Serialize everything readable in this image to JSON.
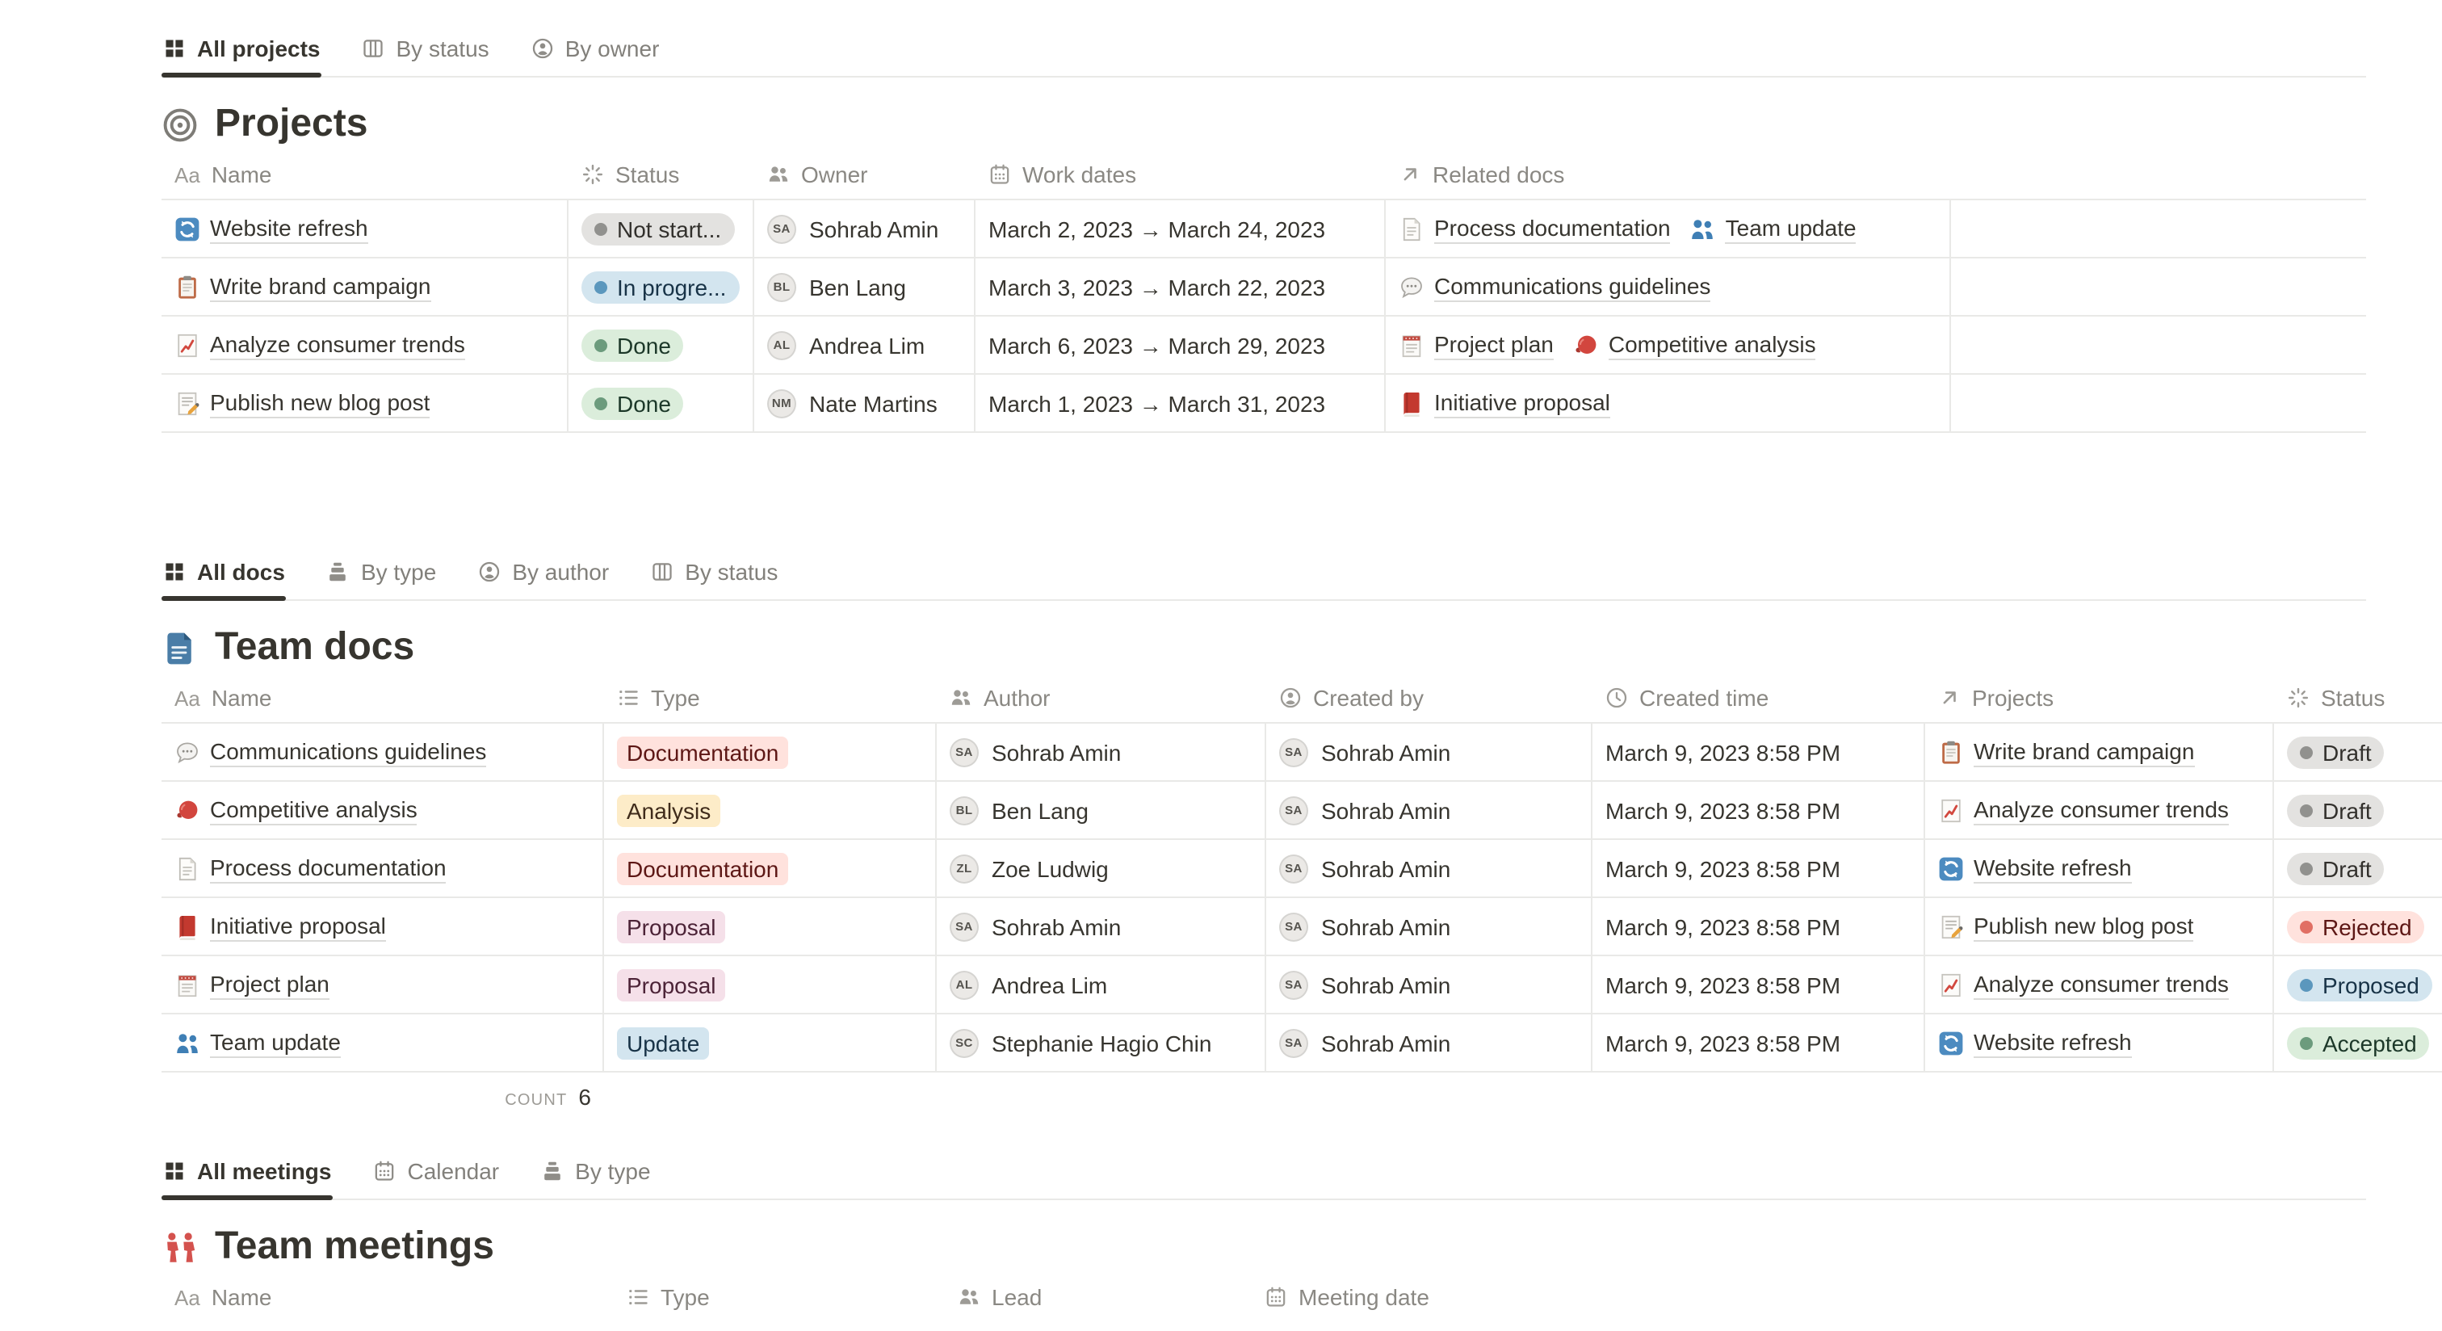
{
  "palette": {
    "status": {
      "gray": {
        "bg": "#E3E2E0",
        "dot": "#91918E",
        "text": "#32302C"
      },
      "blue": {
        "bg": "#D3E5EF",
        "dot": "#5B97BD",
        "text": "#183347"
      },
      "green": {
        "bg": "#DBEDDB",
        "dot": "#6C9B7D",
        "text": "#1C3829"
      },
      "red": {
        "bg": "#FFE2DD",
        "dot": "#E16F64",
        "text": "#5D1715"
      }
    },
    "tag": {
      "red": {
        "bg": "#FFE2DD",
        "text": "#5D1715"
      },
      "yellow": {
        "bg": "#FDECC8",
        "text": "#402C1B"
      },
      "pink": {
        "bg": "#F5E0E9",
        "text": "#4C2337"
      },
      "blue": {
        "bg": "#D3E5EF",
        "text": "#183347"
      }
    }
  },
  "sections": [
    {
      "title": "Projects",
      "title_icon": "target",
      "tabs": [
        {
          "label": "All projects",
          "icon": "grid",
          "active": true
        },
        {
          "label": "By status",
          "icon": "board",
          "active": false
        },
        {
          "label": "By owner",
          "icon": "person",
          "active": false
        }
      ],
      "columns": [
        {
          "label": "Name",
          "icon": "text"
        },
        {
          "label": "Status",
          "icon": "status"
        },
        {
          "label": "Owner",
          "icon": "people"
        },
        {
          "label": "Work dates",
          "icon": "calendar"
        },
        {
          "label": "Related docs",
          "icon": "relation"
        }
      ],
      "rows": [
        {
          "icon": "refresh",
          "name": "Website refresh",
          "status": {
            "label": "Not start...",
            "color": "gray"
          },
          "owner": {
            "name": "Sohrab Amin",
            "initials": "SA"
          },
          "work_dates": "March 2, 2023 → March 24, 2023",
          "related": [
            {
              "icon": "page",
              "label": "Process documentation"
            },
            {
              "icon": "people-blue",
              "label": "Team update"
            }
          ]
        },
        {
          "icon": "clipboard",
          "name": "Write brand campaign",
          "status": {
            "label": "In progre...",
            "color": "blue"
          },
          "owner": {
            "name": "Ben Lang",
            "initials": "BL"
          },
          "work_dates": "March 3, 2023 → March 22, 2023",
          "related": [
            {
              "icon": "speech",
              "label": "Communications guidelines"
            }
          ]
        },
        {
          "icon": "chart",
          "name": "Analyze consumer trends",
          "status": {
            "label": "Done",
            "color": "green"
          },
          "owner": {
            "name": "Andrea Lim",
            "initials": "AL"
          },
          "work_dates": "March 6, 2023 → March 29, 2023",
          "related": [
            {
              "icon": "notepad",
              "label": "Project plan"
            },
            {
              "icon": "glove",
              "label": "Competitive analysis"
            }
          ]
        },
        {
          "icon": "memo",
          "name": "Publish new blog post",
          "status": {
            "label": "Done",
            "color": "green"
          },
          "owner": {
            "name": "Nate Martins",
            "initials": "NM"
          },
          "work_dates": "March 1, 2023 → March 31, 2023",
          "related": [
            {
              "icon": "book",
              "label": "Initiative proposal"
            }
          ]
        }
      ]
    },
    {
      "title": "Team docs",
      "title_icon": "doc-blue",
      "tabs": [
        {
          "label": "All docs",
          "icon": "grid",
          "active": true
        },
        {
          "label": "By type",
          "icon": "stack",
          "active": false
        },
        {
          "label": "By author",
          "icon": "person",
          "active": false
        },
        {
          "label": "By status",
          "icon": "board",
          "active": false
        }
      ],
      "columns": [
        {
          "label": "Name",
          "icon": "text"
        },
        {
          "label": "Type",
          "icon": "list"
        },
        {
          "label": "Author",
          "icon": "people"
        },
        {
          "label": "Created by",
          "icon": "person"
        },
        {
          "label": "Created time",
          "icon": "clock"
        },
        {
          "label": "Projects",
          "icon": "relation"
        },
        {
          "label": "Status",
          "icon": "status"
        }
      ],
      "rows": [
        {
          "icon": "speech",
          "name": "Communications guidelines",
          "type": {
            "label": "Documentation",
            "color": "red"
          },
          "author": {
            "name": "Sohrab Amin",
            "initials": "SA"
          },
          "created_by": {
            "name": "Sohrab Amin",
            "initials": "SA"
          },
          "created_time": "March 9, 2023 8:58 PM",
          "project": {
            "icon": "clipboard",
            "label": "Write brand campaign"
          },
          "status": {
            "label": "Draft",
            "color": "gray"
          }
        },
        {
          "icon": "glove",
          "name": "Competitive analysis",
          "type": {
            "label": "Analysis",
            "color": "yellow"
          },
          "author": {
            "name": "Ben Lang",
            "initials": "BL"
          },
          "created_by": {
            "name": "Sohrab Amin",
            "initials": "SA"
          },
          "created_time": "March 9, 2023 8:58 PM",
          "project": {
            "icon": "chart",
            "label": "Analyze consumer trends"
          },
          "status": {
            "label": "Draft",
            "color": "gray"
          }
        },
        {
          "icon": "page",
          "name": "Process documentation",
          "type": {
            "label": "Documentation",
            "color": "red"
          },
          "author": {
            "name": "Zoe Ludwig",
            "initials": "ZL"
          },
          "created_by": {
            "name": "Sohrab Amin",
            "initials": "SA"
          },
          "created_time": "March 9, 2023 8:58 PM",
          "project": {
            "icon": "refresh",
            "label": "Website refresh"
          },
          "status": {
            "label": "Draft",
            "color": "gray"
          }
        },
        {
          "icon": "book",
          "name": "Initiative proposal",
          "type": {
            "label": "Proposal",
            "color": "pink"
          },
          "author": {
            "name": "Sohrab Amin",
            "initials": "SA"
          },
          "created_by": {
            "name": "Sohrab Amin",
            "initials": "SA"
          },
          "created_time": "March 9, 2023 8:58 PM",
          "project": {
            "icon": "memo",
            "label": "Publish new blog post"
          },
          "status": {
            "label": "Rejected",
            "color": "red"
          }
        },
        {
          "icon": "notepad",
          "name": "Project plan",
          "type": {
            "label": "Proposal",
            "color": "pink"
          },
          "author": {
            "name": "Andrea Lim",
            "initials": "AL"
          },
          "created_by": {
            "name": "Sohrab Amin",
            "initials": "SA"
          },
          "created_time": "March 9, 2023 8:58 PM",
          "project": {
            "icon": "chart",
            "label": "Analyze consumer trends"
          },
          "status": {
            "label": "Proposed",
            "color": "blue"
          }
        },
        {
          "icon": "people-blue",
          "name": "Team update",
          "type": {
            "label": "Update",
            "color": "blue"
          },
          "author": {
            "name": "Stephanie Hagio Chin",
            "initials": "SC"
          },
          "created_by": {
            "name": "Sohrab Amin",
            "initials": "SA"
          },
          "created_time": "March 9, 2023 8:58 PM",
          "project": {
            "icon": "refresh",
            "label": "Website refresh"
          },
          "status": {
            "label": "Accepted",
            "color": "green"
          }
        }
      ],
      "count": {
        "label": "COUNT",
        "value": "6"
      }
    },
    {
      "title": "Team meetings",
      "title_icon": "people-red",
      "tabs": [
        {
          "label": "All meetings",
          "icon": "grid",
          "active": true
        },
        {
          "label": "Calendar",
          "icon": "calendar",
          "active": false
        },
        {
          "label": "By type",
          "icon": "stack",
          "active": false
        }
      ],
      "columns": [
        {
          "label": "Name",
          "icon": "text"
        },
        {
          "label": "Type",
          "icon": "list"
        },
        {
          "label": "Lead",
          "icon": "people"
        },
        {
          "label": "Meeting date",
          "icon": "calendar"
        }
      ],
      "rows": []
    }
  ]
}
